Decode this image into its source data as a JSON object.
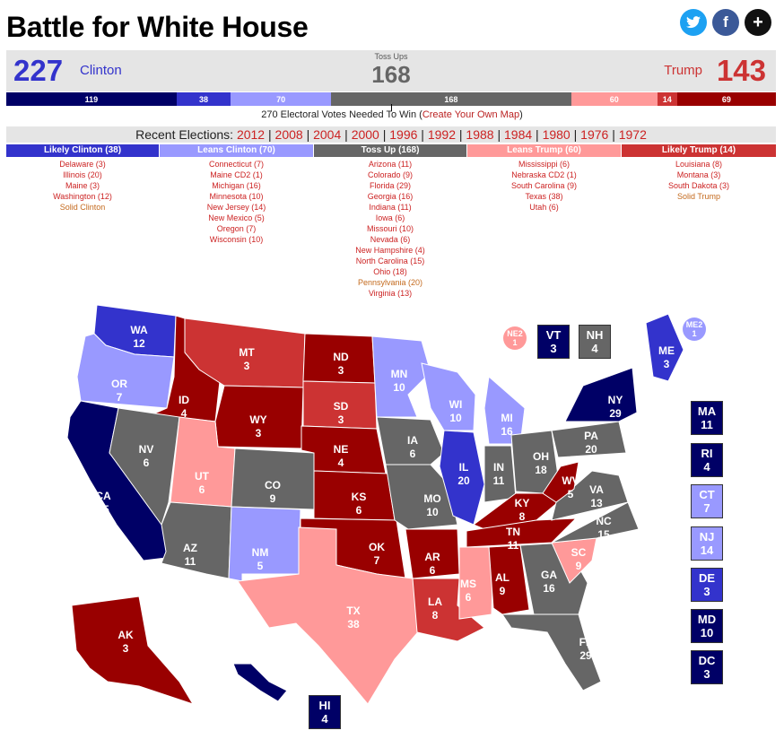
{
  "title": "Battle for White House",
  "social": {
    "twitter": "twitter-icon",
    "facebook": "facebook-icon",
    "more": "+"
  },
  "colors": {
    "safe_d": "#000066",
    "likely_d": "#3333cc",
    "lean_d": "#9999ff",
    "toss": "#666666",
    "lean_r": "#ff9999",
    "likely_r": "#cc3333",
    "safe_r": "#990000"
  },
  "score": {
    "clinton_total": "227",
    "clinton_name": "Clinton",
    "toss_label": "Toss Ups",
    "toss_total": "168",
    "trump_name": "Trump",
    "trump_total": "143"
  },
  "segments": [
    {
      "label": "119",
      "value": 119,
      "color": "#000066"
    },
    {
      "label": "38",
      "value": 38,
      "color": "#3333cc"
    },
    {
      "label": "70",
      "value": 70,
      "color": "#9999ff"
    },
    {
      "label": "168",
      "value": 168,
      "color": "#666666"
    },
    {
      "label": "60",
      "value": 60,
      "color": "#ff9999"
    },
    {
      "label": "14",
      "value": 14,
      "color": "#cc3333"
    },
    {
      "label": "69",
      "value": 69,
      "color": "#990000"
    }
  ],
  "needed_text": "270 Electoral Votes Needed To Win (",
  "needed_link": "Create Your Own Map",
  "needed_close": ")",
  "recent_label": "Recent Elections:",
  "recent_years": [
    "2012",
    "2008",
    "2004",
    "2000",
    "1996",
    "1992",
    "1988",
    "1984",
    "1980",
    "1976",
    "1972"
  ],
  "columns": [
    {
      "header": "Likely Clinton (38)",
      "color": "#3333cc",
      "items": [
        "Delaware (3)",
        "Illinois (20)",
        "Maine (3)",
        "Washington (12)",
        "Solid Clinton"
      ]
    },
    {
      "header": "Leans Clinton (70)",
      "color": "#9999ff",
      "items": [
        "Connecticut (7)",
        "Maine CD2 (1)",
        "Michigan (16)",
        "Minnesota (10)",
        "New Jersey (14)",
        "New Mexico (5)",
        "Oregon (7)",
        "Wisconsin (10)"
      ]
    },
    {
      "header": "Toss Up (168)",
      "color": "#666666",
      "items": [
        "Arizona (11)",
        "Colorado (9)",
        "Florida (29)",
        "Georgia (16)",
        "Indiana (11)",
        "Iowa (6)",
        "Missouri (10)",
        "Nevada (6)",
        "New Hampshire (4)",
        "North Carolina (15)",
        "Ohio (18)",
        "Pennsylvania (20)",
        "Virginia (13)"
      ]
    },
    {
      "header": "Leans Trump (60)",
      "color": "#ff9999",
      "items": [
        "Mississippi (6)",
        "Nebraska CD2 (1)",
        "South Carolina (9)",
        "Texas (38)",
        "Utah (6)"
      ]
    },
    {
      "header": "Likely Trump (14)",
      "color": "#cc3333",
      "items": [
        "Louisiana (8)",
        "Montana (3)",
        "South Dakota (3)",
        "Solid Trump"
      ]
    }
  ],
  "map_states": [
    {
      "abbr": "WA",
      "ev": "12",
      "cat": "likely_d"
    },
    {
      "abbr": "OR",
      "ev": "7",
      "cat": "lean_d"
    },
    {
      "abbr": "CA",
      "ev": "55",
      "cat": "safe_d"
    },
    {
      "abbr": "ID",
      "ev": "4",
      "cat": "safe_r"
    },
    {
      "abbr": "NV",
      "ev": "6",
      "cat": "toss"
    },
    {
      "abbr": "MT",
      "ev": "3",
      "cat": "likely_r"
    },
    {
      "abbr": "WY",
      "ev": "3",
      "cat": "safe_r"
    },
    {
      "abbr": "UT",
      "ev": "6",
      "cat": "lean_r"
    },
    {
      "abbr": "AZ",
      "ev": "11",
      "cat": "toss"
    },
    {
      "abbr": "CO",
      "ev": "9",
      "cat": "toss"
    },
    {
      "abbr": "NM",
      "ev": "5",
      "cat": "lean_d"
    },
    {
      "abbr": "ND",
      "ev": "3",
      "cat": "safe_r"
    },
    {
      "abbr": "SD",
      "ev": "3",
      "cat": "likely_r"
    },
    {
      "abbr": "NE",
      "ev": "4",
      "cat": "safe_r"
    },
    {
      "abbr": "KS",
      "ev": "6",
      "cat": "safe_r"
    },
    {
      "abbr": "OK",
      "ev": "7",
      "cat": "safe_r"
    },
    {
      "abbr": "TX",
      "ev": "38",
      "cat": "lean_r"
    },
    {
      "abbr": "MN",
      "ev": "10",
      "cat": "lean_d"
    },
    {
      "abbr": "IA",
      "ev": "6",
      "cat": "toss"
    },
    {
      "abbr": "MO",
      "ev": "10",
      "cat": "toss"
    },
    {
      "abbr": "AR",
      "ev": "6",
      "cat": "safe_r"
    },
    {
      "abbr": "LA",
      "ev": "8",
      "cat": "likely_r"
    },
    {
      "abbr": "WI",
      "ev": "10",
      "cat": "lean_d"
    },
    {
      "abbr": "IL",
      "ev": "20",
      "cat": "likely_d"
    },
    {
      "abbr": "MI",
      "ev": "16",
      "cat": "lean_d"
    },
    {
      "abbr": "IN",
      "ev": "11",
      "cat": "toss"
    },
    {
      "abbr": "OH",
      "ev": "18",
      "cat": "toss"
    },
    {
      "abbr": "KY",
      "ev": "8",
      "cat": "safe_r"
    },
    {
      "abbr": "TN",
      "ev": "11",
      "cat": "safe_r"
    },
    {
      "abbr": "MS",
      "ev": "6",
      "cat": "lean_r"
    },
    {
      "abbr": "AL",
      "ev": "9",
      "cat": "safe_r"
    },
    {
      "abbr": "GA",
      "ev": "16",
      "cat": "toss"
    },
    {
      "abbr": "FL",
      "ev": "29",
      "cat": "toss"
    },
    {
      "abbr": "SC",
      "ev": "9",
      "cat": "lean_r"
    },
    {
      "abbr": "NC",
      "ev": "15",
      "cat": "toss"
    },
    {
      "abbr": "VA",
      "ev": "13",
      "cat": "toss"
    },
    {
      "abbr": "WV",
      "ev": "5",
      "cat": "safe_r"
    },
    {
      "abbr": "PA",
      "ev": "20",
      "cat": "toss"
    },
    {
      "abbr": "NY",
      "ev": "29",
      "cat": "safe_d"
    },
    {
      "abbr": "ME",
      "ev": "3",
      "cat": "likely_d"
    },
    {
      "abbr": "AK",
      "ev": "3",
      "cat": "safe_r"
    },
    {
      "abbr": "HI",
      "ev": "4",
      "cat": "safe_d"
    }
  ],
  "side_tiles": [
    {
      "abbr": "VT",
      "ev": "3",
      "cat": "safe_d"
    },
    {
      "abbr": "NH",
      "ev": "4",
      "cat": "toss"
    },
    {
      "abbr": "MA",
      "ev": "11",
      "cat": "safe_d"
    },
    {
      "abbr": "RI",
      "ev": "4",
      "cat": "safe_d"
    },
    {
      "abbr": "CT",
      "ev": "7",
      "cat": "lean_d"
    },
    {
      "abbr": "NJ",
      "ev": "14",
      "cat": "lean_d"
    },
    {
      "abbr": "DE",
      "ev": "3",
      "cat": "likely_d"
    },
    {
      "abbr": "MD",
      "ev": "10",
      "cat": "safe_d"
    },
    {
      "abbr": "DC",
      "ev": "3",
      "cat": "safe_d"
    },
    {
      "abbr": "HI",
      "ev": "4",
      "cat": "safe_d"
    }
  ],
  "circles": [
    {
      "abbr": "NE2",
      "ev": "1",
      "cat": "lean_r"
    },
    {
      "abbr": "ME2",
      "ev": "1",
      "cat": "lean_d"
    }
  ]
}
